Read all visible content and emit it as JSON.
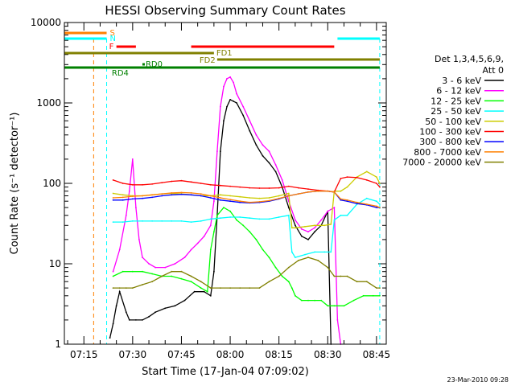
{
  "chart_data": {
    "type": "line",
    "title": "HESSI Observing Summary Count Rates",
    "xlabel": "Start Time (17-Jan-04 07:09:02)",
    "ylabel": "Count Rate (s⁻¹ detector⁻¹)",
    "y_scale": "log",
    "ylim": [
      1,
      10000
    ],
    "xlim": [
      "07:09",
      "08:48"
    ],
    "x_ticks": [
      "07:15",
      "07:30",
      "07:45",
      "08:00",
      "08:15",
      "08:30",
      "08:45"
    ],
    "y_ticks": [
      "1",
      "10",
      "100",
      "1000",
      "10000"
    ],
    "legend_title": [
      "Det 1,3,4,5,6,9,",
      "Att 0"
    ],
    "legend_placement": "right",
    "timestamp": "23-Mar-2010 09:28",
    "series": [
      {
        "name": "3 - 6 keV",
        "color": "#000000",
        "x": [
          "07:23",
          "07:24",
          "07:25",
          "07:26",
          "07:28",
          "07:29",
          "07:31",
          "07:33",
          "07:35",
          "07:37",
          "07:40",
          "07:43",
          "07:46",
          "07:49",
          "07:52",
          "07:54",
          "07:55",
          "07:56",
          "07:57",
          "07:58",
          "07:59",
          "08:00",
          "08:01",
          "08:02",
          "08:04",
          "08:06",
          "08:08",
          "08:10",
          "08:12",
          "08:14",
          "08:16",
          "08:18",
          "08:20",
          "08:22",
          "08:24",
          "08:26",
          "08:28",
          "08:30",
          "08:31"
        ],
        "values": [
          1.2,
          1.8,
          3,
          4.5,
          2.5,
          2,
          2,
          2,
          2.2,
          2.5,
          2.8,
          3,
          3.5,
          4.5,
          4.5,
          4,
          8,
          40,
          250,
          600,
          900,
          1100,
          1050,
          1000,
          700,
          450,
          300,
          220,
          180,
          140,
          90,
          50,
          30,
          22,
          20,
          25,
          30,
          45,
          1
        ]
      },
      {
        "name": "6 - 12 keV",
        "color": "#ff00ff",
        "x": [
          "07:24",
          "07:26",
          "07:28",
          "07:29",
          "07:30",
          "07:31",
          "07:32",
          "07:33",
          "07:35",
          "07:37",
          "07:40",
          "07:43",
          "07:46",
          "07:48",
          "07:50",
          "07:52",
          "07:54",
          "07:55",
          "07:56",
          "07:57",
          "07:58",
          "07:59",
          "08:00",
          "08:01",
          "08:02",
          "08:04",
          "08:06",
          "08:08",
          "08:10",
          "08:12",
          "08:14",
          "08:16",
          "08:18",
          "08:20",
          "08:22",
          "08:24",
          "08:26",
          "08:28",
          "08:30",
          "08:32",
          "08:33",
          "08:34"
        ],
        "values": [
          8,
          15,
          40,
          80,
          200,
          50,
          20,
          12,
          10,
          9,
          9,
          10,
          12,
          15,
          18,
          22,
          30,
          60,
          250,
          900,
          1600,
          2000,
          2100,
          1800,
          1300,
          900,
          600,
          400,
          300,
          250,
          170,
          110,
          60,
          35,
          27,
          25,
          28,
          35,
          45,
          50,
          2,
          1
        ]
      },
      {
        "name": "12 - 25 keV",
        "color": "#00ff00",
        "x": [
          "07:24",
          "07:27",
          "07:30",
          "07:33",
          "07:36",
          "07:39",
          "07:42",
          "07:45",
          "07:48",
          "07:51",
          "07:53",
          "07:54",
          "07:55",
          "07:56",
          "07:58",
          "08:00",
          "08:02",
          "08:04",
          "08:06",
          "08:08",
          "08:10",
          "08:12",
          "08:14",
          "08:16",
          "08:18",
          "08:19",
          "08:20",
          "08:22",
          "08:24",
          "08:26",
          "08:28",
          "08:30",
          "08:32",
          "08:35",
          "08:38",
          "08:41",
          "08:44",
          "08:46"
        ],
        "values": [
          7,
          8,
          8,
          8,
          7.5,
          7,
          7,
          6.5,
          6,
          5,
          4.5,
          15,
          25,
          40,
          50,
          45,
          35,
          30,
          25,
          20,
          15,
          12,
          9,
          7,
          6,
          5,
          4,
          3.5,
          3.5,
          3.5,
          3.5,
          3,
          3,
          3,
          3.5,
          4,
          4,
          4
        ]
      },
      {
        "name": "25 - 50 keV",
        "color": "#00ffff",
        "x": [
          "07:24",
          "07:27",
          "07:30",
          "07:33",
          "07:36",
          "07:39",
          "07:42",
          "07:45",
          "07:48",
          "07:51",
          "07:54",
          "07:57",
          "08:00",
          "08:03",
          "08:06",
          "08:09",
          "08:12",
          "08:15",
          "08:18",
          "08:19",
          "08:20",
          "08:23",
          "08:26",
          "08:29",
          "08:31",
          "08:32",
          "08:34",
          "08:36",
          "08:39",
          "08:42",
          "08:45",
          "08:46"
        ],
        "values": [
          33,
          33,
          34,
          34,
          34,
          34,
          34,
          34,
          33,
          34,
          36,
          37,
          38,
          38,
          37,
          36,
          36,
          38,
          40,
          14,
          12,
          13,
          14,
          14,
          14,
          35,
          40,
          40,
          55,
          65,
          60,
          55
        ]
      },
      {
        "name": "50 - 100 keV",
        "color": "#cccc00",
        "x": [
          "07:24",
          "07:27",
          "07:30",
          "07:33",
          "07:36",
          "07:39",
          "07:42",
          "07:45",
          "07:48",
          "07:51",
          "07:54",
          "07:57",
          "08:00",
          "08:03",
          "08:06",
          "08:09",
          "08:12",
          "08:15",
          "08:18",
          "08:19",
          "08:20",
          "08:23",
          "08:26",
          "08:29",
          "08:31",
          "08:32",
          "08:34",
          "08:36",
          "08:39",
          "08:42",
          "08:45",
          "08:46"
        ],
        "values": [
          75,
          72,
          70,
          70,
          72,
          74,
          75,
          74,
          72,
          70,
          70,
          72,
          70,
          68,
          66,
          65,
          66,
          70,
          75,
          28,
          28,
          29,
          30,
          30,
          31,
          80,
          80,
          90,
          120,
          140,
          120,
          100
        ]
      },
      {
        "name": "100 - 300 keV",
        "color": "#ff0000",
        "x": [
          "07:24",
          "07:27",
          "07:30",
          "07:33",
          "07:36",
          "07:39",
          "07:42",
          "07:45",
          "07:48",
          "07:51",
          "07:54",
          "07:57",
          "08:00",
          "08:03",
          "08:06",
          "08:09",
          "08:12",
          "08:15",
          "08:18",
          "08:21",
          "08:24",
          "08:27",
          "08:30",
          "08:32",
          "08:34",
          "08:36",
          "08:39",
          "08:42",
          "08:45",
          "08:46"
        ],
        "values": [
          110,
          100,
          96,
          96,
          98,
          102,
          106,
          108,
          104,
          100,
          96,
          94,
          92,
          90,
          88,
          87,
          87,
          88,
          92,
          88,
          85,
          82,
          80,
          78,
          115,
          120,
          118,
          110,
          100,
          90
        ]
      },
      {
        "name": "300 - 800 keV",
        "color": "#0000ff",
        "x": [
          "07:24",
          "07:27",
          "07:30",
          "07:33",
          "07:36",
          "07:39",
          "07:42",
          "07:45",
          "07:48",
          "07:51",
          "07:54",
          "07:57",
          "08:00",
          "08:03",
          "08:06",
          "08:09",
          "08:12",
          "08:15",
          "08:18",
          "08:21",
          "08:24",
          "08:27",
          "08:30",
          "08:32",
          "08:34",
          "08:36",
          "08:39",
          "08:42",
          "08:45",
          "08:46"
        ],
        "values": [
          62,
          62,
          64,
          65,
          67,
          70,
          72,
          73,
          72,
          70,
          66,
          62,
          60,
          58,
          57,
          58,
          60,
          64,
          70,
          74,
          78,
          80,
          80,
          78,
          62,
          60,
          56,
          54,
          50,
          50
        ]
      },
      {
        "name": "800 - 7000 keV",
        "color": "#ff8000",
        "x": [
          "07:24",
          "07:27",
          "07:30",
          "07:33",
          "07:36",
          "07:39",
          "07:42",
          "07:45",
          "07:48",
          "07:51",
          "07:54",
          "07:57",
          "08:00",
          "08:03",
          "08:06",
          "08:09",
          "08:12",
          "08:15",
          "08:18",
          "08:21",
          "08:24",
          "08:27",
          "08:30",
          "08:32",
          "08:34",
          "08:36",
          "08:39",
          "08:42",
          "08:45",
          "08:46"
        ],
        "values": [
          66,
          67,
          69,
          70,
          72,
          74,
          76,
          77,
          76,
          74,
          70,
          66,
          63,
          60,
          58,
          59,
          61,
          65,
          70,
          74,
          78,
          80,
          80,
          78,
          64,
          62,
          58,
          55,
          52,
          50
        ]
      },
      {
        "name": "7000 - 20000 keV",
        "color": "#808000",
        "x": [
          "07:24",
          "07:26",
          "07:28",
          "07:30",
          "07:33",
          "07:36",
          "07:39",
          "07:42",
          "07:45",
          "07:48",
          "07:51",
          "07:54",
          "07:57",
          "08:00",
          "08:03",
          "08:06",
          "08:09",
          "08:12",
          "08:15",
          "08:18",
          "08:21",
          "08:24",
          "08:27",
          "08:30",
          "08:32",
          "08:34",
          "08:36",
          "08:39",
          "08:42",
          "08:45",
          "08:46"
        ],
        "values": [
          5,
          5,
          5,
          5,
          5.5,
          6,
          7,
          8,
          8,
          7,
          6,
          5,
          5,
          5,
          5,
          5,
          5,
          6,
          7,
          9,
          11,
          12,
          11,
          9,
          7,
          7,
          7,
          6,
          6,
          5,
          5
        ]
      }
    ],
    "flag_bars": [
      {
        "label": "S",
        "color": "#ff8000",
        "segments": [
          [
            "07:09",
            "07:22"
          ]
        ]
      },
      {
        "label": "N",
        "color": "#00ffff",
        "segments": [
          [
            "07:09",
            "07:22"
          ],
          [
            "08:33",
            "08:46"
          ]
        ]
      },
      {
        "label": "F",
        "color": "#ff0000",
        "segments": [
          [
            "07:25",
            "07:31"
          ],
          [
            "07:48",
            "08:32"
          ]
        ]
      },
      {
        "label": "FD1",
        "color": "#808000",
        "segments": [
          [
            "07:09",
            "07:55"
          ]
        ]
      },
      {
        "label": "FD2",
        "color": "#808000",
        "segments": [
          [
            "07:56",
            "08:46"
          ]
        ]
      },
      {
        "label": "RD0",
        "color": "#008000",
        "segments": [
          [
            "07:33",
            "07:33"
          ]
        ]
      },
      {
        "label": "RD4",
        "color": "#008000",
        "segments": [
          [
            "07:09",
            "08:46"
          ]
        ]
      }
    ]
  }
}
